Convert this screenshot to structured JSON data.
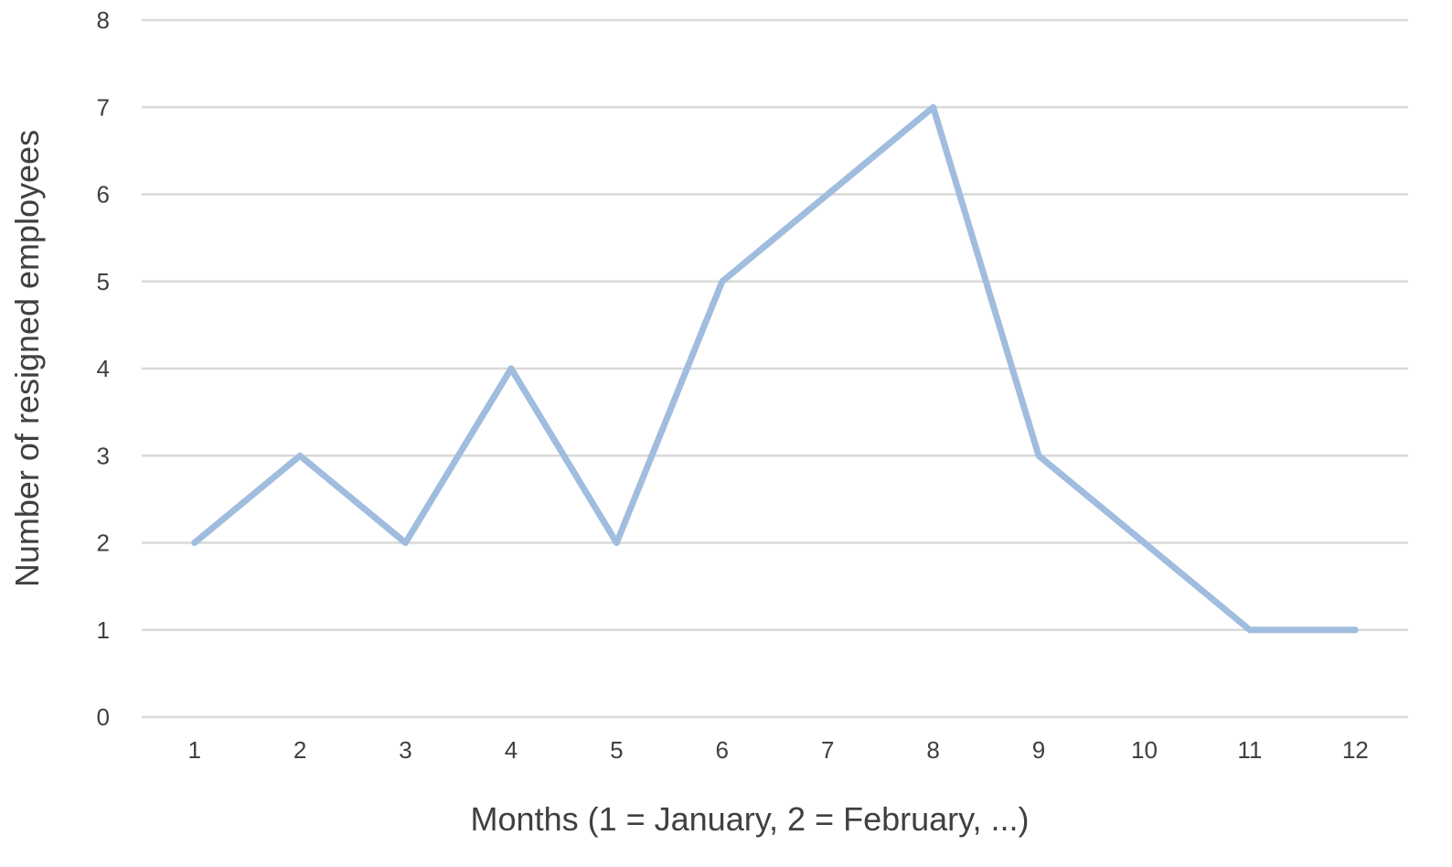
{
  "chart_data": {
    "type": "line",
    "title": "",
    "xlabel": "Months (1 = January, 2 = February, ...)",
    "ylabel": "Number of resigned employees",
    "x": [
      1,
      2,
      3,
      4,
      5,
      6,
      7,
      8,
      9,
      10,
      11,
      12
    ],
    "x_tick_labels": [
      "1",
      "2",
      "3",
      "4",
      "5",
      "6",
      "7",
      "8",
      "9",
      "10",
      "11",
      "12"
    ],
    "y_tick_labels": [
      "0",
      "1",
      "2",
      "3",
      "4",
      "5",
      "6",
      "7",
      "8"
    ],
    "series": [
      {
        "values": [
          2,
          3,
          2,
          4,
          2,
          5,
          6,
          7,
          3,
          2,
          1,
          1
        ],
        "color": "#a0bcde"
      }
    ],
    "ylim": [
      0,
      8
    ],
    "grid": true,
    "legend": "none"
  }
}
